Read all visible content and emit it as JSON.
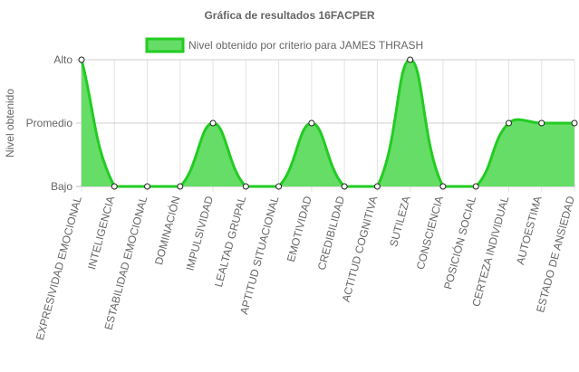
{
  "chart_data": {
    "type": "area",
    "title": "Gráfica de resultados 16FACPER",
    "ylabel": "Nivel obtenido",
    "xlabel": "",
    "y_ticks": [
      {
        "label": "Alto",
        "value": 2
      },
      {
        "label": "Promedio",
        "value": 1
      },
      {
        "label": "Bajo",
        "value": 0
      }
    ],
    "ylim": [
      0,
      2
    ],
    "grid": true,
    "legend_position": "top",
    "categories": [
      "EXPRESIVIDAD EMOCIONAL",
      "INTELIGENCIA",
      "ESTABILIDAD EMOCIONAL",
      "DOMINACIÓN",
      "IMPULSIVIDAD",
      "LEALTAD GRUPAL",
      "APTITUD SITUACIONAL",
      "EMOTIVIDAD",
      "CREDIBILIDAD",
      "ACTITUD COGNITIVA",
      "SUTILEZA",
      "CONSCIENCIA",
      "POSICIÓN SOCIAL",
      "CERTEZA INDIVIDUAL",
      "AUTOESTIMA",
      "ESTADO DE ANSIEDAD"
    ],
    "series": [
      {
        "name": "Nivel obtenido por criterio para JAMES THRASH",
        "values": [
          2,
          0,
          0,
          0,
          1,
          0,
          0,
          1,
          0,
          0,
          2,
          0,
          0,
          1,
          1,
          1
        ],
        "fill_color": "#66dd66",
        "line_color": "#22cc22"
      }
    ]
  }
}
